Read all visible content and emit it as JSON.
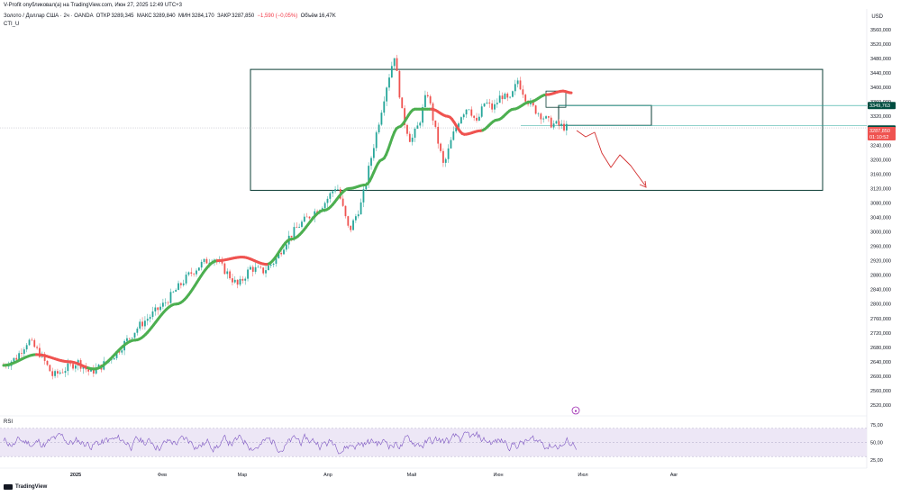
{
  "header": {
    "published": "V-Profit опубликовал(а) на TradingView.com, Июн 27, 2025 12:49 UTC+3"
  },
  "symbol": {
    "name": "Золото / Доллар США · 2ч · OANDA",
    "open_label": "ОТКР",
    "open": "3289,345",
    "high_label": "МАКС",
    "high": "3289,840",
    "low_label": "МИН",
    "low": "3284,170",
    "close_label": "ЗАКР",
    "close": "3287,850",
    "change": "−1,590 (−0,05%)",
    "volume_label": "Объём",
    "volume": "16,47K"
  },
  "indicator": "CTI_U",
  "rsi_label": "RSI",
  "currency": "USD",
  "footer": {
    "brand": "TradingView"
  },
  "colors": {
    "up": "#26a69a",
    "down": "#ef5350",
    "cti_up": "#4caf50",
    "cti_down": "#ef5350",
    "box": "#0b3d35",
    "rsi": "#7e57c2",
    "rsi_band": "#ede7f6",
    "price_tag": "#ef5350",
    "level_tag": "#004d40"
  },
  "chart_data": {
    "type": "candlestick",
    "instrument": "XAUUSD",
    "timeframe": "2ч",
    "y_axis": {
      "ticks": [
        "3560,000",
        "3520,000",
        "3480,000",
        "3440,000",
        "3400,000",
        "3360,000",
        "3320,000",
        "3280,000",
        "3240,000",
        "3200,000",
        "3160,000",
        "3120,000",
        "3080,000",
        "3040,000",
        "3000,000",
        "2960,000",
        "2920,000",
        "2880,000",
        "2840,000",
        "2800,000",
        "2760,000",
        "2720,000",
        "2680,000",
        "2640,000",
        "2600,000",
        "2560,000",
        "2520,000"
      ],
      "range": [
        2500,
        3580
      ]
    },
    "x_axis": {
      "labels": [
        "2025",
        "Фев",
        "Мар",
        "Апр",
        "Май",
        "Июн",
        "Июл",
        "Авг"
      ]
    },
    "price_path": [
      [
        0,
        2630
      ],
      [
        3,
        2650
      ],
      [
        6,
        2700
      ],
      [
        9,
        2660
      ],
      [
        12,
        2600
      ],
      [
        15,
        2620
      ],
      [
        18,
        2640
      ],
      [
        21,
        2610
      ],
      [
        24,
        2630
      ],
      [
        27,
        2660
      ],
      [
        30,
        2700
      ],
      [
        33,
        2740
      ],
      [
        36,
        2770
      ],
      [
        39,
        2800
      ],
      [
        42,
        2840
      ],
      [
        45,
        2880
      ],
      [
        48,
        2910
      ],
      [
        51,
        2930
      ],
      [
        54,
        2890
      ],
      [
        57,
        2850
      ],
      [
        60,
        2900
      ],
      [
        63,
        2890
      ],
      [
        66,
        2920
      ],
      [
        69,
        2980
      ],
      [
        72,
        3020
      ],
      [
        75,
        3050
      ],
      [
        78,
        3080
      ],
      [
        81,
        3130
      ],
      [
        84,
        3000
      ],
      [
        87,
        3080
      ],
      [
        90,
        3240
      ],
      [
        93,
        3400
      ],
      [
        95,
        3490
      ],
      [
        97,
        3320
      ],
      [
        99,
        3250
      ],
      [
        101,
        3300
      ],
      [
        103,
        3390
      ],
      [
        105,
        3280
      ],
      [
        107,
        3180
      ],
      [
        109,
        3260
      ],
      [
        111,
        3320
      ],
      [
        113,
        3350
      ],
      [
        115,
        3300
      ],
      [
        117,
        3360
      ],
      [
        119,
        3340
      ],
      [
        121,
        3380
      ],
      [
        123,
        3360
      ],
      [
        125,
        3420
      ],
      [
        127,
        3370
      ],
      [
        129,
        3340
      ],
      [
        131,
        3320
      ],
      [
        133,
        3300
      ],
      [
        135,
        3295
      ],
      [
        137,
        3288
      ]
    ],
    "cti_line": [
      [
        0,
        2630
      ],
      [
        8,
        2660
      ],
      [
        16,
        2640
      ],
      [
        22,
        2620
      ],
      [
        32,
        2700
      ],
      [
        42,
        2800
      ],
      [
        52,
        2920
      ],
      [
        58,
        2930
      ],
      [
        64,
        2910
      ],
      [
        70,
        2980
      ],
      [
        78,
        3060
      ],
      [
        84,
        3120
      ],
      [
        88,
        3130
      ],
      [
        92,
        3200
      ],
      [
        96,
        3290
      ],
      [
        100,
        3340
      ],
      [
        104,
        3340
      ],
      [
        108,
        3320
      ],
      [
        112,
        3270
      ],
      [
        116,
        3280
      ],
      [
        120,
        3310
      ],
      [
        124,
        3340
      ],
      [
        128,
        3360
      ],
      [
        132,
        3380
      ],
      [
        136,
        3390
      ],
      [
        138,
        3385
      ]
    ],
    "cti_down_segments": [
      [
        8,
        20
      ],
      [
        52,
        64
      ],
      [
        104,
        116
      ],
      [
        132,
        138
      ]
    ],
    "range_box": {
      "top": 3450,
      "bottom": 3115,
      "start": 58,
      "end": 195
    },
    "zone_box": {
      "top": 3350,
      "bottom": 3295,
      "start": 132,
      "end": 155
    },
    "small_box": {
      "top": 3390,
      "bottom": 3345,
      "start": 128,
      "end": 133
    },
    "forecast_path": [
      [
        137,
        3288
      ],
      [
        140,
        3255
      ],
      [
        144,
        3240
      ],
      [
        148,
        3190
      ],
      [
        151,
        3200
      ],
      [
        155,
        3120
      ]
    ],
    "current_price": {
      "value": "3287,850",
      "countdown": "01:10:52"
    },
    "levels": [
      {
        "value": "3349,763",
        "price": 3350
      },
      {
        "value": "3293,500",
        "price": 3293
      }
    ],
    "rsi": {
      "ticks": [
        "75,00",
        "50,00",
        "25,00"
      ],
      "upper": 70,
      "lower": 30
    }
  }
}
